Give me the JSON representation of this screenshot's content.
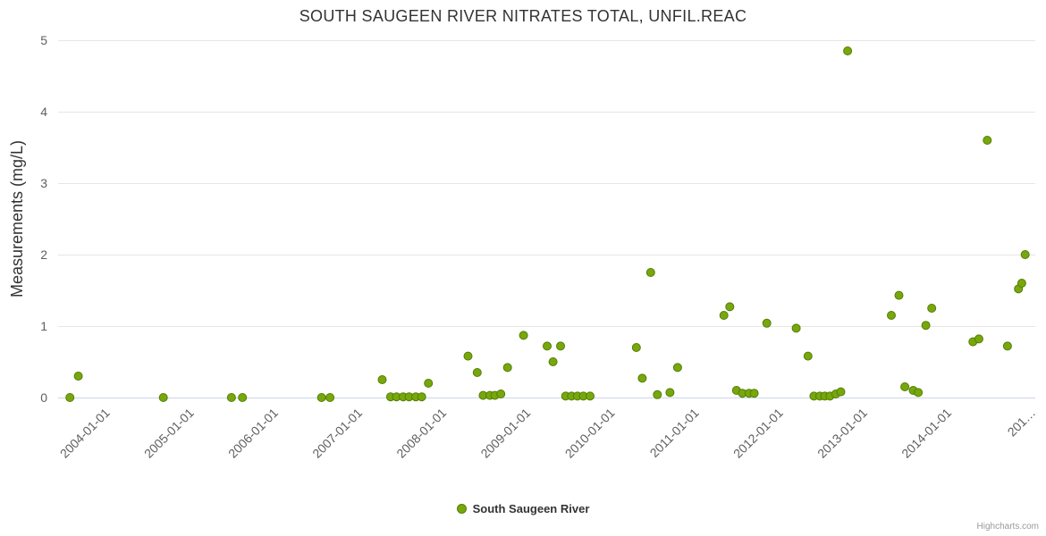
{
  "credits": "Highcharts.com",
  "colors": {
    "series_fill": "#77a80b",
    "series_stroke": "#567c08",
    "gridline": "#e6e6e6",
    "axis_line": "#ccd6eb",
    "tick_label": "#606060",
    "title_text": "#333333"
  },
  "chart_data": {
    "type": "scatter",
    "title": "SOUTH SAUGEEN RIVER NITRATES TOTAL, UNFIL.REAC",
    "xlabel": "",
    "ylabel": "Measurements (mg/L)",
    "ylim": [
      0,
      5
    ],
    "y_ticks": [
      0,
      1,
      2,
      3,
      4,
      5
    ],
    "xlim_decimal_years": [
      2003.42,
      2015.03
    ],
    "x_ticks": [
      {
        "year": 2004,
        "label": "2004-01-01"
      },
      {
        "year": 2005,
        "label": "2005-01-01"
      },
      {
        "year": 2006,
        "label": "2006-01-01"
      },
      {
        "year": 2007,
        "label": "2007-01-01"
      },
      {
        "year": 2008,
        "label": "2008-01-01"
      },
      {
        "year": 2009,
        "label": "2009-01-01"
      },
      {
        "year": 2010,
        "label": "2010-01-01"
      },
      {
        "year": 2011,
        "label": "2011-01-01"
      },
      {
        "year": 2012,
        "label": "2012-01-01"
      },
      {
        "year": 2013,
        "label": "2013-01-01"
      },
      {
        "year": 2014,
        "label": "2014-01-01"
      },
      {
        "year": 2015,
        "label": "201…"
      }
    ],
    "grid": "horizontal",
    "legend_position": "bottom-center",
    "marker_radius": 4.5,
    "series": [
      {
        "name": "South Saugeen River",
        "color": "#77a80b",
        "marker_stroke": "#567c08",
        "x_unit": "decimal_year",
        "y_unit": "mg/L",
        "points": [
          [
            2003.56,
            0
          ],
          [
            2003.66,
            0.3
          ],
          [
            2004.67,
            0
          ],
          [
            2005.48,
            0
          ],
          [
            2005.61,
            0
          ],
          [
            2006.55,
            0
          ],
          [
            2006.65,
            0
          ],
          [
            2007.27,
            0.25
          ],
          [
            2007.37,
            0.01
          ],
          [
            2007.44,
            0.01
          ],
          [
            2007.52,
            0.01
          ],
          [
            2007.59,
            0.01
          ],
          [
            2007.67,
            0.01
          ],
          [
            2007.74,
            0.01
          ],
          [
            2007.82,
            0.2
          ],
          [
            2008.29,
            0.58
          ],
          [
            2008.4,
            0.35
          ],
          [
            2008.47,
            0.03
          ],
          [
            2008.55,
            0.03
          ],
          [
            2008.61,
            0.03
          ],
          [
            2008.68,
            0.05
          ],
          [
            2008.76,
            0.42
          ],
          [
            2008.95,
            0.87
          ],
          [
            2009.23,
            0.72
          ],
          [
            2009.3,
            0.5
          ],
          [
            2009.39,
            0.72
          ],
          [
            2009.45,
            0.02
          ],
          [
            2009.52,
            0.02
          ],
          [
            2009.59,
            0.02
          ],
          [
            2009.66,
            0.02
          ],
          [
            2009.74,
            0.02
          ],
          [
            2010.29,
            0.7
          ],
          [
            2010.36,
            0.27
          ],
          [
            2010.46,
            1.75
          ],
          [
            2010.54,
            0.04
          ],
          [
            2010.69,
            0.07
          ],
          [
            2010.78,
            0.42
          ],
          [
            2011.33,
            1.15
          ],
          [
            2011.4,
            1.27
          ],
          [
            2011.48,
            0.1
          ],
          [
            2011.55,
            0.06
          ],
          [
            2011.63,
            0.06
          ],
          [
            2011.69,
            0.06
          ],
          [
            2011.84,
            1.04
          ],
          [
            2012.19,
            0.97
          ],
          [
            2012.33,
            0.58
          ],
          [
            2012.4,
            0.02
          ],
          [
            2012.47,
            0.02
          ],
          [
            2012.53,
            0.02
          ],
          [
            2012.59,
            0.02
          ],
          [
            2012.66,
            0.05
          ],
          [
            2012.72,
            0.08
          ],
          [
            2012.8,
            4.85
          ],
          [
            2013.32,
            1.15
          ],
          [
            2013.41,
            1.43
          ],
          [
            2013.48,
            0.15
          ],
          [
            2013.58,
            0.1
          ],
          [
            2013.64,
            0.07
          ],
          [
            2013.73,
            1.01
          ],
          [
            2013.8,
            1.25
          ],
          [
            2014.29,
            0.78
          ],
          [
            2014.36,
            0.82
          ],
          [
            2014.46,
            3.6
          ],
          [
            2014.7,
            0.72
          ],
          [
            2014.83,
            1.52
          ],
          [
            2014.87,
            1.6
          ],
          [
            2014.91,
            2.0
          ]
        ]
      }
    ]
  }
}
